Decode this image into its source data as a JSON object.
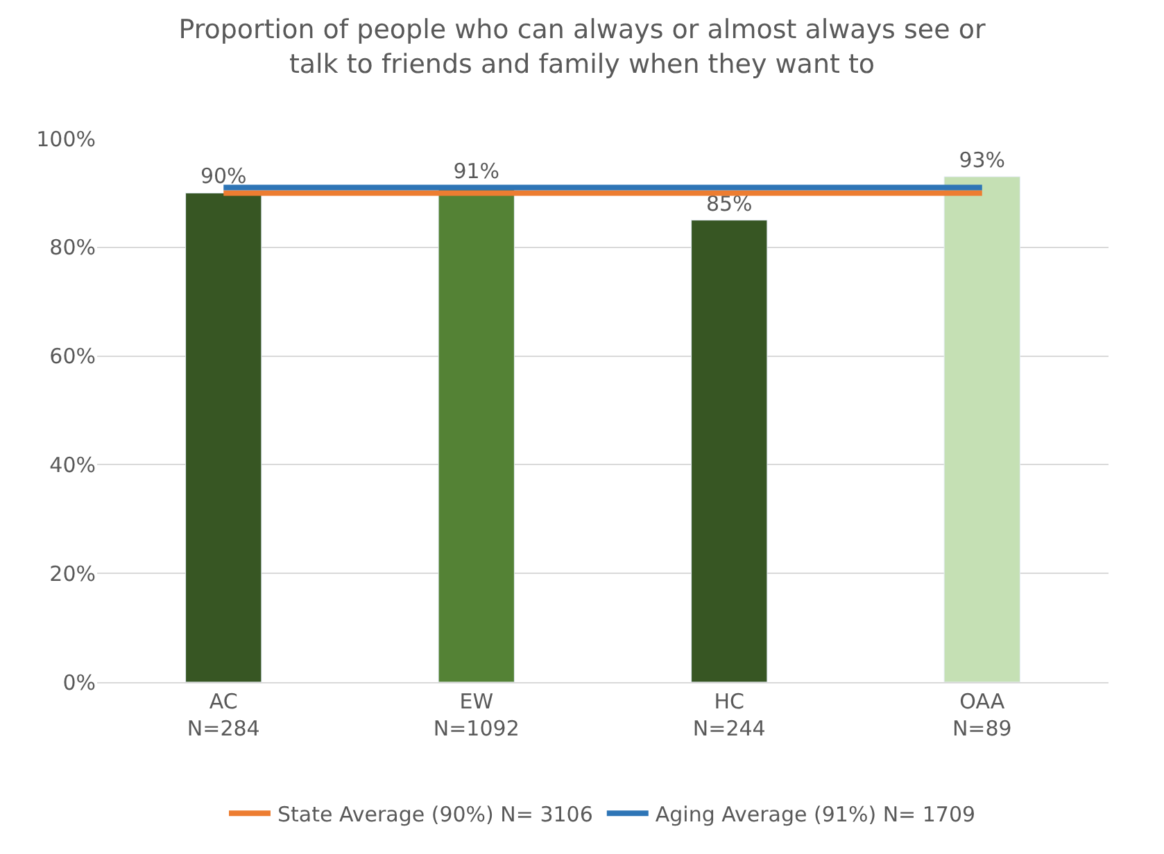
{
  "chart_data": {
    "type": "bar",
    "title": "Proportion of people who can always or almost always see or\ntalk to friends and family when they want to",
    "categories": [
      "AC\nN=284",
      "EW\nN=1092",
      "HC\nN=244",
      "OAA\nN=89"
    ],
    "series": [
      {
        "colors": [
          "#375623",
          "#548235",
          "#375623",
          "#c5e0b4"
        ],
        "values": [
          90,
          91,
          85,
          93
        ],
        "value_labels": [
          "90%",
          "91%",
          "85%",
          "93%"
        ]
      },
      {
        "type": "line",
        "name": "State Average (90%) N= 3106",
        "color": "#ed7d31",
        "values": [
          90,
          90,
          90,
          90
        ]
      },
      {
        "type": "line",
        "name": "Aging Average (91%) N= 1709",
        "color": "#2e75b6",
        "values": [
          91,
          91,
          91,
          91
        ]
      }
    ],
    "ylim": [
      0,
      100
    ],
    "yticks": [
      {
        "value": 0,
        "label": "0%"
      },
      {
        "value": 20,
        "label": "20%"
      },
      {
        "value": 40,
        "label": "40%"
      },
      {
        "value": 60,
        "label": "60%"
      },
      {
        "value": 80,
        "label": "80%"
      },
      {
        "value": 100,
        "label": "100%"
      }
    ],
    "grid": "y",
    "legend": "bottom",
    "marker": "none",
    "line_style": "solid"
  }
}
